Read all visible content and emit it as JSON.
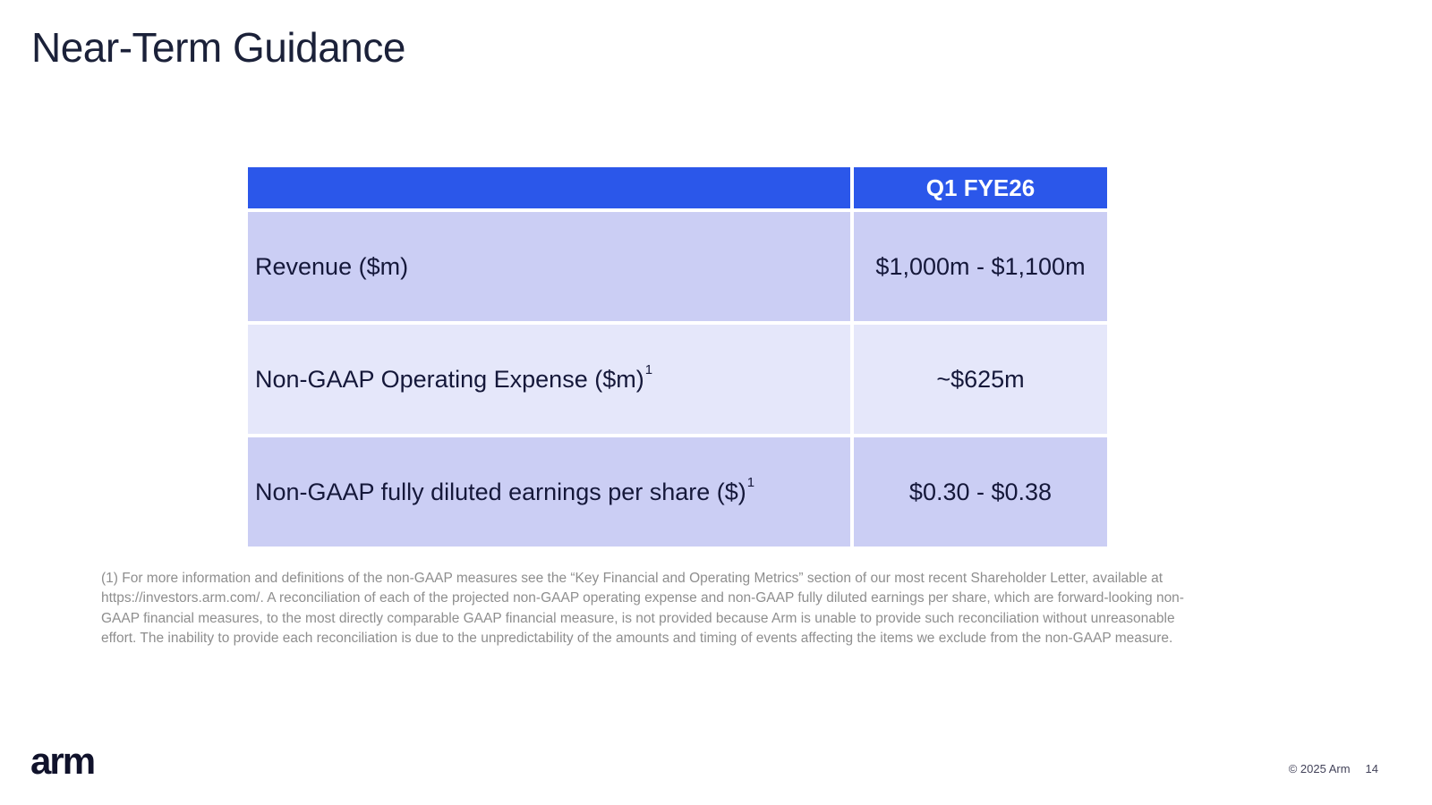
{
  "slide": {
    "title": "Near-Term Guidance",
    "logo": "arm",
    "copyright": "© 2025 Arm",
    "page_number": "14"
  },
  "table": {
    "column_header": "Q1 FYE26",
    "rows": [
      {
        "label": "Revenue ($m)",
        "sup": "",
        "value": "$1,000m - $1,100m"
      },
      {
        "label": "Non-GAAP Operating Expense ($m)",
        "sup": "1",
        "value": "~$625m"
      },
      {
        "label": "Non-GAAP fully diluted earnings per share ($)",
        "sup": "1",
        "value": "$0.30 - $0.38"
      }
    ]
  },
  "footnote": "(1) For more information and definitions of the non-GAAP measures see the “Key Financial and Operating Metrics” section of our most recent Shareholder Letter, available at https://investors.arm.com/. A reconciliation of each of the projected non-GAAP operating expense and non-GAAP fully diluted earnings per share, which are forward-looking non-GAAP financial measures, to the most directly comparable GAAP financial measure, is not provided because Arm is unable to provide such reconciliation without unreasonable effort. The inability to provide each reconciliation is due to the unpredictability of the amounts and timing of events affecting the items we exclude from the non-GAAP measure.",
  "colors": {
    "header_blue": "#2b57ea",
    "row_dark": "#cbcef4",
    "row_light": "#e5e7fa",
    "title_text": "#1b2139",
    "footnote_text": "#8e8e8e"
  }
}
